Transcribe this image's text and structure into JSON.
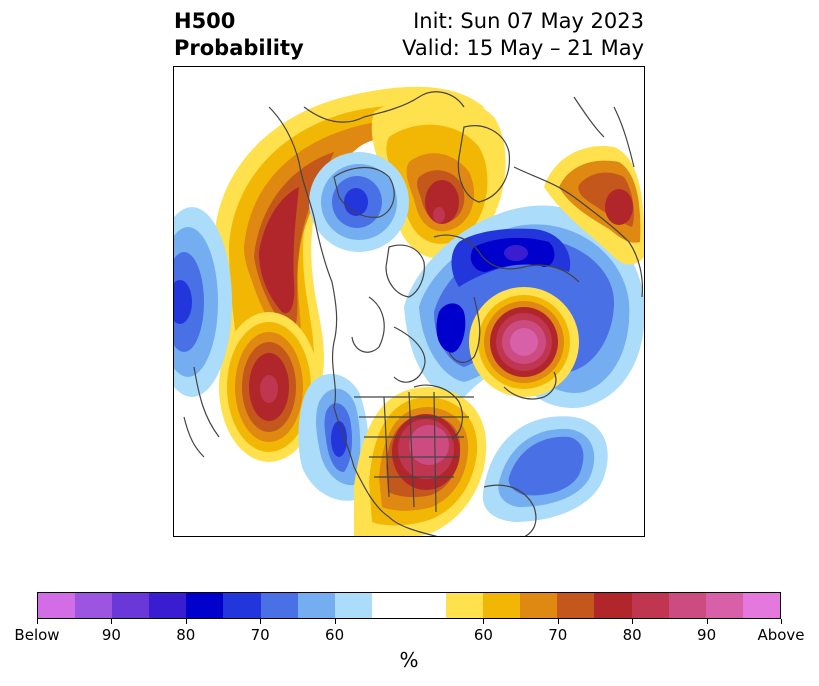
{
  "title": {
    "left_line1": "H500",
    "left_line2": "Probability",
    "right_line1": "Init: Sun 07 May 2023",
    "right_line2": "Valid: 15 May – 21 May"
  },
  "colorbar": {
    "unit": "%",
    "segments": [
      "#d26de6",
      "#9b55e0",
      "#6a38d8",
      "#3a1dd0",
      "#0000cc",
      "#2236dc",
      "#4a70e6",
      "#74aef0",
      "#abdcfa",
      "#ffffff",
      "#ffe14d",
      "#f2b705",
      "#df8812",
      "#c4571c",
      "#b0262a",
      "#c03650",
      "#cc4c82",
      "#d860a8",
      "#e478dc"
    ],
    "tick_labels": [
      "Below",
      "90",
      "80",
      "70",
      "60",
      "60",
      "70",
      "80",
      "90",
      "Above"
    ]
  },
  "map_layers": {
    "colors": {
      "above_weak": "#ffe14d",
      "above_60": "#f2b705",
      "above_65": "#df8812",
      "above_70": "#c4571c",
      "above_75": "#b0262a",
      "above_80": "#c03650",
      "above_85": "#cc4c82",
      "above_90": "#d860a8",
      "below_weak": "#abdcfa",
      "below_60": "#74aef0",
      "below_65": "#4a70e6",
      "below_70": "#2236dc",
      "below_75": "#0000cc",
      "below_80": "#3a1dd0",
      "coast": "#444444"
    }
  }
}
